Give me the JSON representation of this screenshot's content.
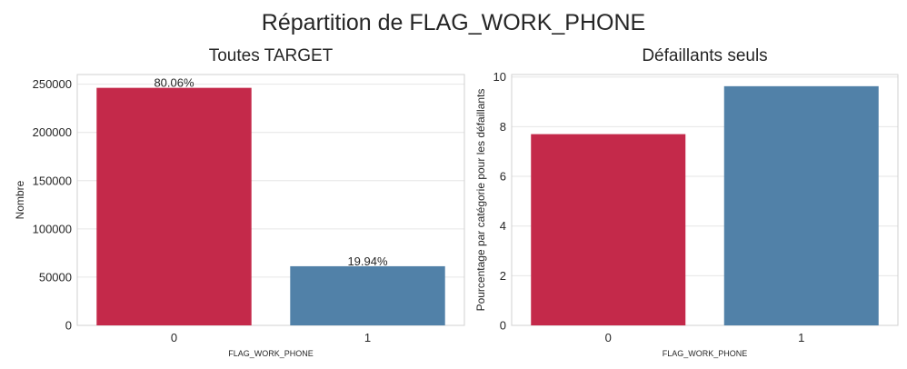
{
  "suptitle": "Répartition de FLAG_WORK_PHONE",
  "colors": [
    "#c4294a",
    "#5181a8"
  ],
  "chart_data": [
    {
      "type": "bar",
      "title": "Toutes TARGET",
      "categories": [
        "0",
        "1"
      ],
      "values": [
        246200,
        61300
      ],
      "annotations": [
        "80.06%",
        "19.94%"
      ],
      "xlabel": "FLAG_WORK_PHONE",
      "ylabel": "Nombre",
      "ylim": [
        0,
        260000
      ],
      "yticks": [
        0,
        50000,
        100000,
        150000,
        200000,
        250000
      ],
      "grid": true
    },
    {
      "type": "bar",
      "title": "Défaillants seuls",
      "categories": [
        "0",
        "1"
      ],
      "values": [
        7.7,
        9.63
      ],
      "xlabel": "FLAG_WORK_PHONE",
      "ylabel": "Pourcentage par catégorie pour les défaillants",
      "ylim": [
        0,
        10.1
      ],
      "yticks": [
        0,
        2,
        4,
        6,
        8,
        10
      ],
      "grid": true
    }
  ]
}
